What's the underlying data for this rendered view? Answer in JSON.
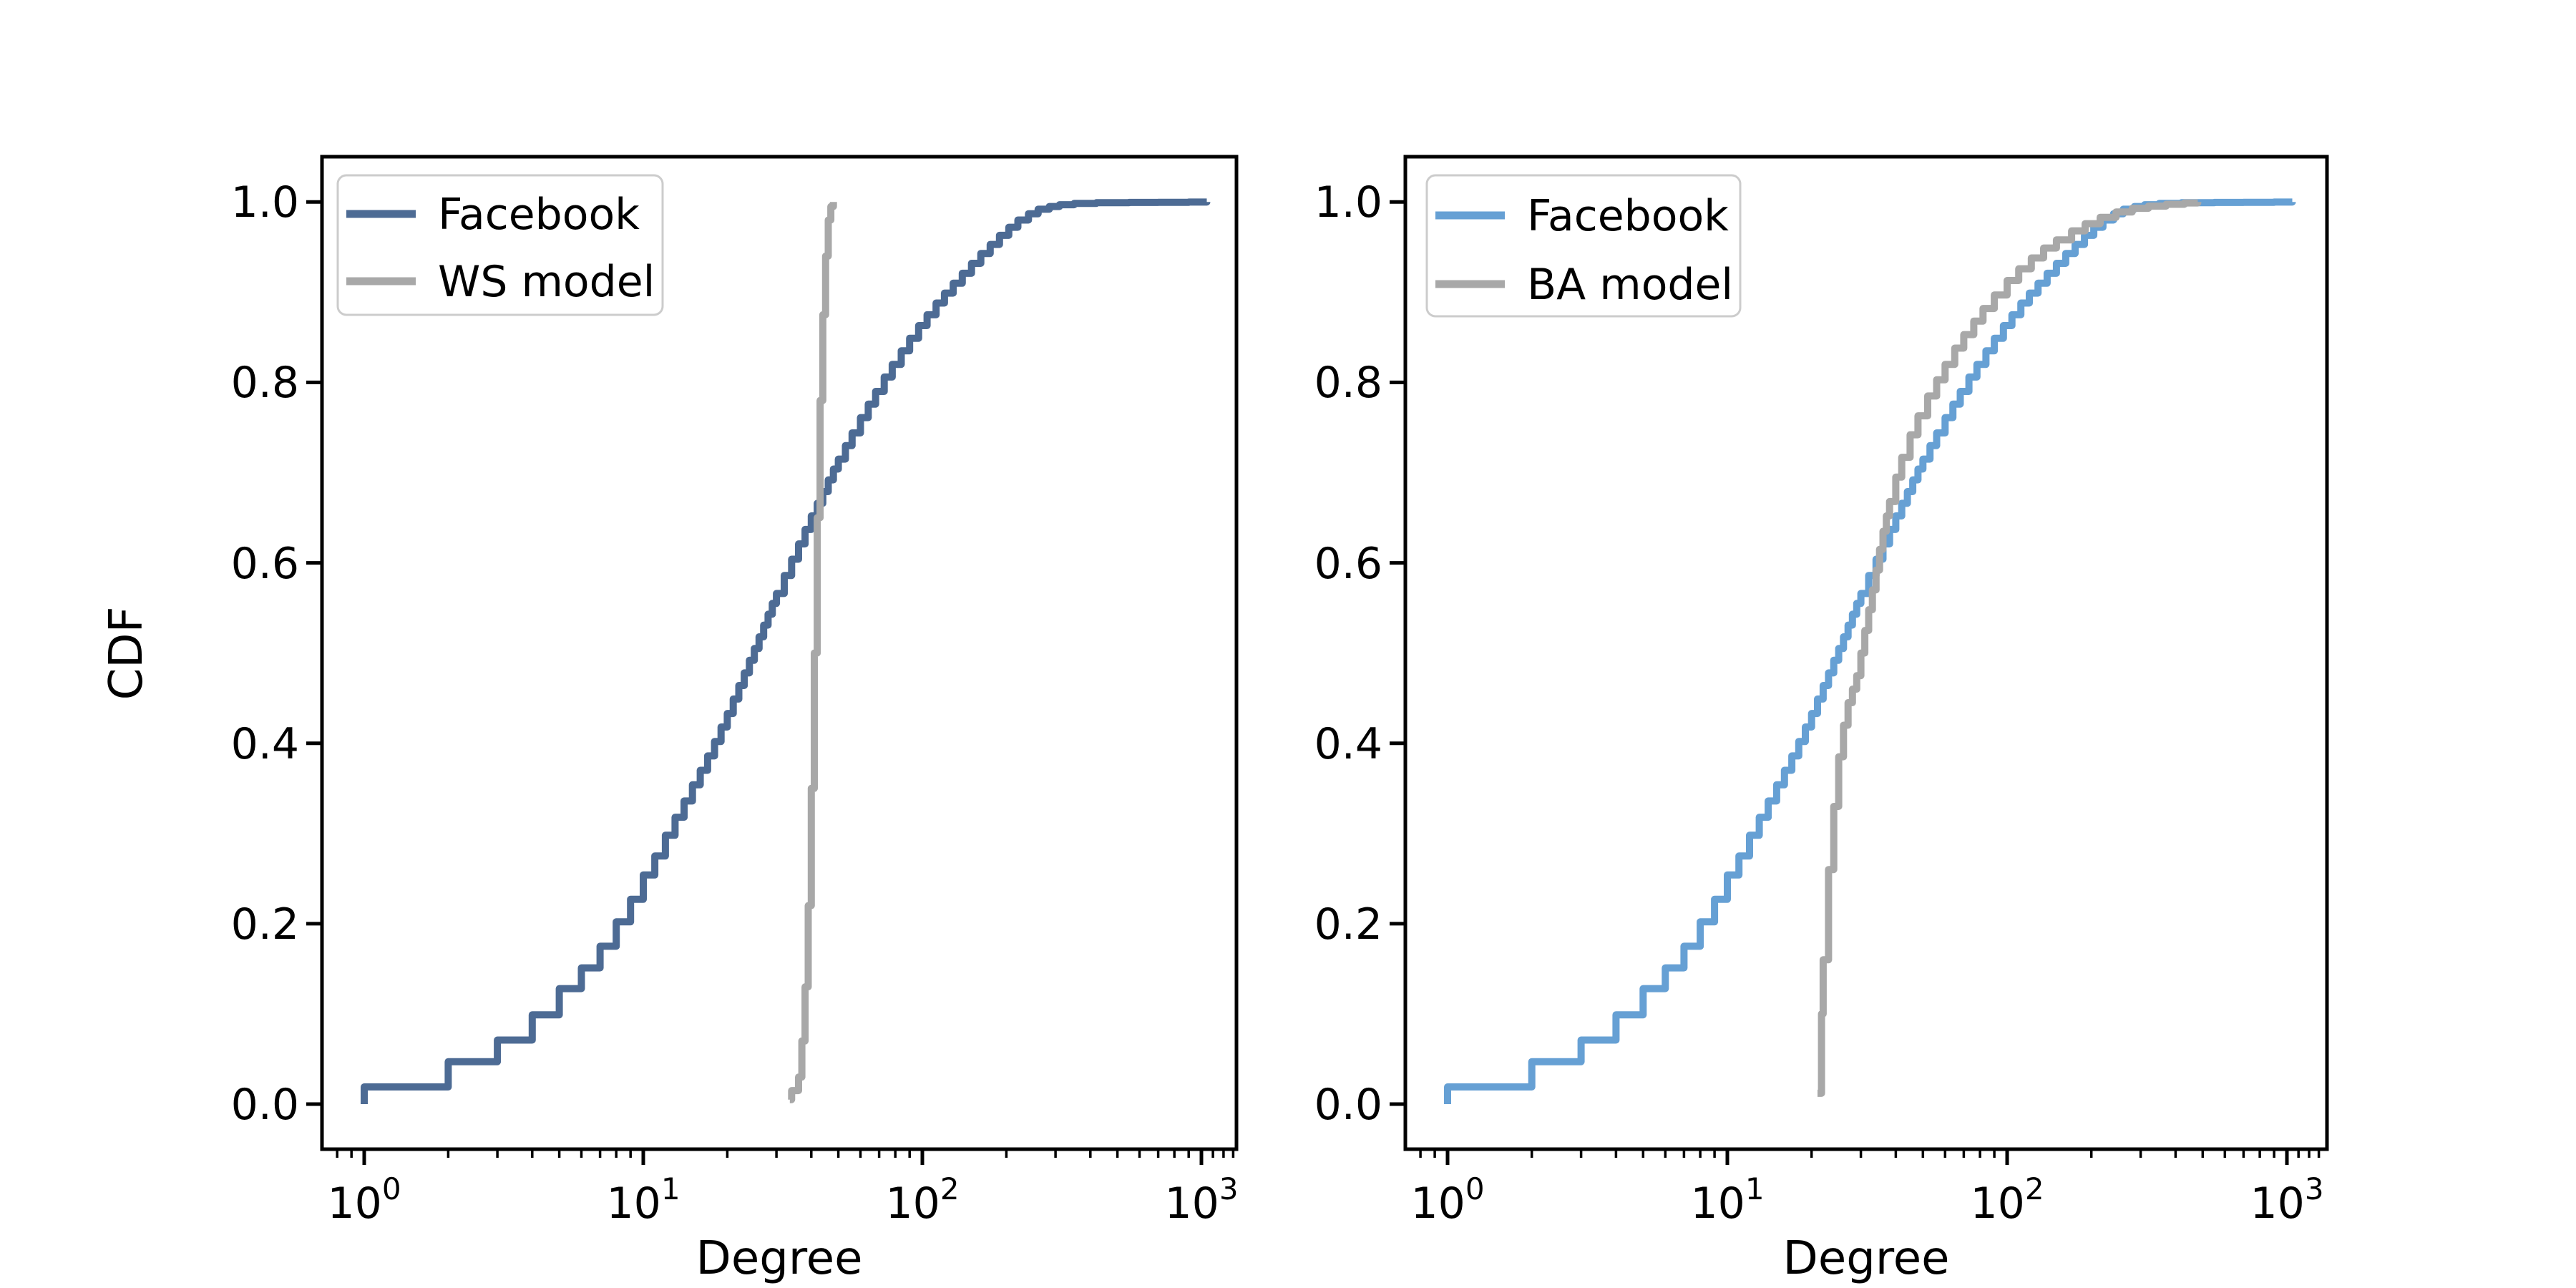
{
  "figure": {
    "background": "#ffffff"
  },
  "chart_data": [
    {
      "type": "line",
      "subtype": "step-cdf",
      "title": "",
      "xlabel": "Degree",
      "ylabel": "CDF",
      "xscale": "log",
      "yscale": "linear",
      "xlim": [
        0.7,
        1340
      ],
      "ylim": [
        -0.05,
        1.05
      ],
      "grid": false,
      "legend_position": "upper left",
      "xticks": [
        {
          "base": "10",
          "exp": "0",
          "value": 1
        },
        {
          "base": "10",
          "exp": "1",
          "value": 10
        },
        {
          "base": "10",
          "exp": "2",
          "value": 100
        },
        {
          "base": "10",
          "exp": "3",
          "value": 1000
        }
      ],
      "yticks": [
        "1.0",
        "0.8",
        "0.6",
        "0.4",
        "0.2",
        "0.0"
      ],
      "series": [
        {
          "name": "Facebook",
          "color": "#4D6B94",
          "points": [
            [
              1,
              0.0
            ],
            [
              1,
              0.019
            ],
            [
              2,
              0.047
            ],
            [
              3,
              0.071
            ],
            [
              4,
              0.099
            ],
            [
              5,
              0.128
            ],
            [
              6,
              0.151
            ],
            [
              7,
              0.175
            ],
            [
              8,
              0.202
            ],
            [
              9,
              0.227
            ],
            [
              10,
              0.254
            ],
            [
              11,
              0.275
            ],
            [
              12,
              0.298
            ],
            [
              13,
              0.318
            ],
            [
              14,
              0.336
            ],
            [
              15,
              0.354
            ],
            [
              16,
              0.37
            ],
            [
              17,
              0.386
            ],
            [
              18,
              0.402
            ],
            [
              19,
              0.418
            ],
            [
              20,
              0.433
            ],
            [
              21,
              0.449
            ],
            [
              22,
              0.464
            ],
            [
              23,
              0.478
            ],
            [
              24,
              0.492
            ],
            [
              25,
              0.505
            ],
            [
              26,
              0.518
            ],
            [
              27,
              0.531
            ],
            [
              28,
              0.543
            ],
            [
              29,
              0.555
            ],
            [
              30,
              0.566
            ],
            [
              32,
              0.586
            ],
            [
              34,
              0.604
            ],
            [
              36,
              0.621
            ],
            [
              38,
              0.637
            ],
            [
              40,
              0.652
            ],
            [
              42,
              0.666
            ],
            [
              44,
              0.679
            ],
            [
              46,
              0.692
            ],
            [
              48,
              0.704
            ],
            [
              50,
              0.715
            ],
            [
              53,
              0.73
            ],
            [
              56,
              0.744
            ],
            [
              60,
              0.761
            ],
            [
              64,
              0.776
            ],
            [
              68,
              0.79
            ],
            [
              73,
              0.806
            ],
            [
              78,
              0.82
            ],
            [
              84,
              0.835
            ],
            [
              90,
              0.849
            ],
            [
              97,
              0.863
            ],
            [
              104,
              0.875
            ],
            [
              112,
              0.888
            ],
            [
              120,
              0.899
            ],
            [
              129,
              0.91
            ],
            [
              139,
              0.921
            ],
            [
              150,
              0.932
            ],
            [
              162,
              0.943
            ],
            [
              175,
              0.953
            ],
            [
              189,
              0.963
            ],
            [
              204,
              0.972
            ],
            [
              220,
              0.98
            ],
            [
              240,
              0.987
            ],
            [
              260,
              0.992
            ],
            [
              285,
              0.995
            ],
            [
              310,
              0.997
            ],
            [
              350,
              0.9985
            ],
            [
              420,
              0.9992
            ],
            [
              550,
              0.9995
            ],
            [
              700,
              0.9997
            ],
            [
              900,
              0.9999
            ],
            [
              1045,
              1.0
            ]
          ]
        },
        {
          "name": "WS model",
          "color": "#A8A8A8",
          "points": [
            [
              33.5,
              0.005
            ],
            [
              34,
              0.015
            ],
            [
              36,
              0.03
            ],
            [
              37,
              0.07
            ],
            [
              38,
              0.13
            ],
            [
              39,
              0.22
            ],
            [
              40,
              0.35
            ],
            [
              41,
              0.5
            ],
            [
              42,
              0.65
            ],
            [
              43,
              0.78
            ],
            [
              44,
              0.875
            ],
            [
              45,
              0.94
            ],
            [
              46,
              0.98
            ],
            [
              47,
              0.995
            ],
            [
              48,
              1.0
            ]
          ]
        }
      ]
    },
    {
      "type": "line",
      "subtype": "step-cdf",
      "title": "",
      "xlabel": "Degree",
      "ylabel": "",
      "xscale": "log",
      "yscale": "linear",
      "xlim": [
        0.7,
        1340
      ],
      "ylim": [
        -0.05,
        1.05
      ],
      "grid": false,
      "legend_position": "upper left",
      "xticks": [
        {
          "base": "10",
          "exp": "0",
          "value": 1
        },
        {
          "base": "10",
          "exp": "1",
          "value": 10
        },
        {
          "base": "10",
          "exp": "2",
          "value": 100
        },
        {
          "base": "10",
          "exp": "3",
          "value": 1000
        }
      ],
      "yticks": [
        "1.0",
        "0.8",
        "0.6",
        "0.4",
        "0.2",
        "0.0"
      ],
      "series": [
        {
          "name": "Facebook",
          "color": "#66A0D4",
          "points": [
            [
              1,
              0.0
            ],
            [
              1,
              0.019
            ],
            [
              2,
              0.047
            ],
            [
              3,
              0.071
            ],
            [
              4,
              0.099
            ],
            [
              5,
              0.128
            ],
            [
              6,
              0.151
            ],
            [
              7,
              0.175
            ],
            [
              8,
              0.202
            ],
            [
              9,
              0.227
            ],
            [
              10,
              0.254
            ],
            [
              11,
              0.275
            ],
            [
              12,
              0.298
            ],
            [
              13,
              0.318
            ],
            [
              14,
              0.336
            ],
            [
              15,
              0.354
            ],
            [
              16,
              0.37
            ],
            [
              17,
              0.386
            ],
            [
              18,
              0.402
            ],
            [
              19,
              0.418
            ],
            [
              20,
              0.433
            ],
            [
              21,
              0.449
            ],
            [
              22,
              0.464
            ],
            [
              23,
              0.478
            ],
            [
              24,
              0.492
            ],
            [
              25,
              0.505
            ],
            [
              26,
              0.518
            ],
            [
              27,
              0.531
            ],
            [
              28,
              0.543
            ],
            [
              29,
              0.555
            ],
            [
              30,
              0.566
            ],
            [
              32,
              0.586
            ],
            [
              34,
              0.604
            ],
            [
              36,
              0.621
            ],
            [
              38,
              0.637
            ],
            [
              40,
              0.652
            ],
            [
              42,
              0.666
            ],
            [
              44,
              0.679
            ],
            [
              46,
              0.692
            ],
            [
              48,
              0.704
            ],
            [
              50,
              0.715
            ],
            [
              53,
              0.73
            ],
            [
              56,
              0.744
            ],
            [
              60,
              0.761
            ],
            [
              64,
              0.776
            ],
            [
              68,
              0.79
            ],
            [
              73,
              0.806
            ],
            [
              78,
              0.82
            ],
            [
              84,
              0.835
            ],
            [
              90,
              0.849
            ],
            [
              97,
              0.863
            ],
            [
              104,
              0.875
            ],
            [
              112,
              0.888
            ],
            [
              120,
              0.899
            ],
            [
              129,
              0.91
            ],
            [
              139,
              0.921
            ],
            [
              150,
              0.932
            ],
            [
              162,
              0.943
            ],
            [
              175,
              0.953
            ],
            [
              189,
              0.963
            ],
            [
              204,
              0.972
            ],
            [
              220,
              0.98
            ],
            [
              240,
              0.987
            ],
            [
              260,
              0.992
            ],
            [
              285,
              0.995
            ],
            [
              310,
              0.997
            ],
            [
              350,
              0.9985
            ],
            [
              420,
              0.9992
            ],
            [
              550,
              0.9995
            ],
            [
              700,
              0.9997
            ],
            [
              900,
              0.9999
            ],
            [
              1045,
              1.0
            ]
          ]
        },
        {
          "name": "BA model",
          "color": "#A8A8A8",
          "points": [
            [
              21,
              0.012
            ],
            [
              21.7,
              0.1
            ],
            [
              22,
              0.16
            ],
            [
              23,
              0.26
            ],
            [
              24,
              0.33
            ],
            [
              25,
              0.385
            ],
            [
              26,
              0.42
            ],
            [
              27,
              0.445
            ],
            [
              28,
              0.46
            ],
            [
              29,
              0.475
            ],
            [
              30,
              0.5
            ],
            [
              31,
              0.525
            ],
            [
              32,
              0.548
            ],
            [
              33,
              0.57
            ],
            [
              34,
              0.592
            ],
            [
              35,
              0.615
            ],
            [
              36,
              0.635
            ],
            [
              37,
              0.652
            ],
            [
              38,
              0.668
            ],
            [
              40,
              0.695
            ],
            [
              42,
              0.717
            ],
            [
              45,
              0.742
            ],
            [
              48,
              0.763
            ],
            [
              52,
              0.785
            ],
            [
              56,
              0.803
            ],
            [
              60,
              0.82
            ],
            [
              65,
              0.838
            ],
            [
              70,
              0.853
            ],
            [
              76,
              0.868
            ],
            [
              82,
              0.882
            ],
            [
              90,
              0.897
            ],
            [
              100,
              0.913
            ],
            [
              110,
              0.926
            ],
            [
              122,
              0.938
            ],
            [
              135,
              0.949
            ],
            [
              150,
              0.958
            ],
            [
              170,
              0.968
            ],
            [
              190,
              0.976
            ],
            [
              215,
              0.983
            ],
            [
              245,
              0.989
            ],
            [
              280,
              0.993
            ],
            [
              320,
              0.9955
            ],
            [
              370,
              0.9975
            ],
            [
              430,
              0.999
            ],
            [
              480,
              1.0
            ]
          ]
        }
      ]
    }
  ]
}
